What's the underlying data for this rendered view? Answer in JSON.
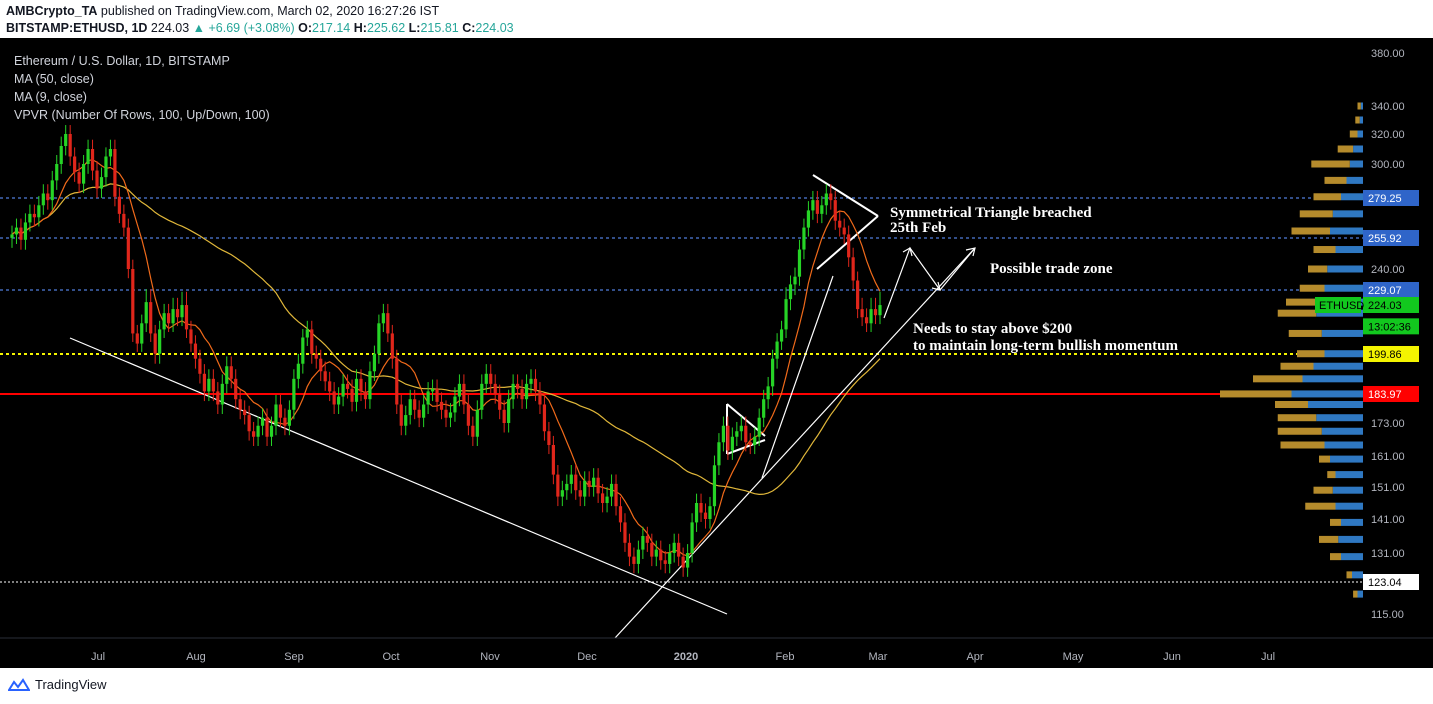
{
  "header": {
    "publisher": "AMBCrypto_TA",
    "published_text": "published on TradingView.com, March 02, 2020 16:27:26 IST",
    "symbol": "BITSTAMP:ETHUSD, 1D",
    "last": "224.03",
    "change": "▲ +6.69 (+3.08%)",
    "open_label": "O:",
    "open": "217.14",
    "high_label": "H:",
    "high": "225.62",
    "low_label": "L:",
    "low": "215.81",
    "close_label": "C:",
    "close": "224.03"
  },
  "legend": {
    "title": "Ethereum / U.S. Dollar, 1D, BITSTAMP",
    "ma50": "MA (50, close)",
    "ma9": "MA (9, close)",
    "vpvr": "VPVR (Number Of Rows, 100, Up/Down, 100)"
  },
  "footer": {
    "brand": "TradingView"
  },
  "colors": {
    "up": "#26d426",
    "down": "#e0261b",
    "ma50": "#e0b73a",
    "ma9": "#f06a1a",
    "dotted_blue": "#4f7ddb",
    "yellow": "#f4f400",
    "red_line": "#ff0000",
    "vp_up": "#2f78c2",
    "vp_down": "#b58b2c"
  },
  "chart_data": {
    "type": "candlestick",
    "y_axis": {
      "ticks": [
        380,
        340,
        320,
        300,
        240,
        173,
        161,
        151,
        141,
        131,
        115
      ]
    },
    "x_axis": {
      "labels": [
        "Jul",
        "Aug",
        "Sep",
        "Oct",
        "Nov",
        "Dec",
        "2020",
        "Feb",
        "Mar",
        "Apr",
        "May",
        "Jun",
        "Jul"
      ]
    },
    "price_tags": [
      {
        "label": "279.25",
        "value": 279.25,
        "style": "blue"
      },
      {
        "label": "255.92",
        "value": 255.92,
        "style": "blue"
      },
      {
        "label": "229.07",
        "value": 229.07,
        "style": "blue"
      },
      {
        "label": "224.03",
        "value": 224.03,
        "style": "green",
        "symbol": "ETHUSD"
      },
      {
        "label": "13:02:36",
        "value": 213.5,
        "style": "green"
      },
      {
        "label": "199.86",
        "value": 199.86,
        "style": "yellow"
      },
      {
        "label": "183.97",
        "value": 183.97,
        "style": "red"
      },
      {
        "label": "123.04",
        "value": 123.04,
        "style": "white"
      }
    ],
    "horizontal_levels": [
      {
        "value": 279.25,
        "style": "blue-dotted"
      },
      {
        "value": 255.92,
        "style": "blue-dotted"
      },
      {
        "value": 229.07,
        "style": "blue-dotted"
      },
      {
        "value": 199.86,
        "style": "yellow-dotted"
      },
      {
        "value": 183.97,
        "style": "red-solid"
      },
      {
        "value": 123.04,
        "style": "white-dotted"
      }
    ],
    "annotations": [
      "Symmetrical Triangle breached",
      "25th Feb",
      "Possible trade zone",
      "Needs to stay above $200",
      "to maintain long-term bullish momentum"
    ],
    "closes": [
      258,
      262,
      255,
      265,
      270,
      268,
      275,
      282,
      278,
      290,
      300,
      312,
      320,
      305,
      295,
      288,
      300,
      310,
      296,
      285,
      292,
      305,
      310,
      280,
      270,
      262,
      240,
      210,
      205,
      215,
      225,
      210,
      200,
      212,
      220,
      215,
      222,
      218,
      224,
      212,
      205,
      198,
      192,
      185,
      190,
      185,
      180,
      188,
      195,
      190,
      182,
      178,
      176,
      170,
      168,
      172,
      175,
      168,
      172,
      180,
      175,
      172,
      178,
      190,
      196,
      208,
      212,
      200,
      198,
      193,
      189,
      185,
      180,
      183,
      188,
      186,
      181,
      190,
      185,
      182,
      193,
      200,
      215,
      220,
      210,
      198,
      180,
      172,
      176,
      182,
      178,
      175,
      180,
      185,
      186,
      181,
      178,
      175,
      177,
      183,
      188,
      180,
      172,
      168,
      178,
      188,
      192,
      188,
      184,
      178,
      173,
      182,
      188,
      186,
      182,
      188,
      190,
      185,
      180,
      170,
      165,
      155,
      148,
      150,
      152,
      155,
      150,
      148,
      153,
      151,
      154,
      149,
      146,
      148,
      152,
      145,
      140,
      134,
      130,
      128,
      132,
      136,
      134,
      130,
      132,
      129,
      128,
      131,
      134,
      130,
      127,
      131,
      140,
      146,
      143,
      141,
      145,
      158,
      166,
      172,
      163,
      168,
      170,
      172,
      166,
      165,
      168,
      175,
      182,
      187,
      198,
      206,
      212,
      226,
      232,
      236,
      250,
      262,
      272,
      278,
      270,
      275,
      282,
      278,
      266,
      262,
      258,
      246,
      234,
      222,
      218,
      215,
      222,
      219,
      224
    ],
    "vpvr": [
      {
        "price": 340,
        "up": 4,
        "down": 6
      },
      {
        "price": 330,
        "up": 6,
        "down": 8
      },
      {
        "price": 320,
        "up": 10,
        "down": 14
      },
      {
        "price": 310,
        "up": 18,
        "down": 28
      },
      {
        "price": 300,
        "up": 24,
        "down": 70
      },
      {
        "price": 290,
        "up": 30,
        "down": 40
      },
      {
        "price": 280,
        "up": 40,
        "down": 50
      },
      {
        "price": 270,
        "up": 55,
        "down": 60
      },
      {
        "price": 260,
        "up": 60,
        "down": 70
      },
      {
        "price": 250,
        "up": 50,
        "down": 40
      },
      {
        "price": 240,
        "up": 65,
        "down": 35
      },
      {
        "price": 230,
        "up": 70,
        "down": 45
      },
      {
        "price": 225,
        "up": 80,
        "down": 60
      },
      {
        "price": 220,
        "up": 85,
        "down": 70
      },
      {
        "price": 210,
        "up": 75,
        "down": 60
      },
      {
        "price": 200,
        "up": 70,
        "down": 50
      },
      {
        "price": 195,
        "up": 90,
        "down": 60
      },
      {
        "price": 190,
        "up": 110,
        "down": 90
      },
      {
        "price": 184,
        "up": 130,
        "down": 130
      },
      {
        "price": 180,
        "up": 100,
        "down": 60
      },
      {
        "price": 175,
        "up": 85,
        "down": 70
      },
      {
        "price": 170,
        "up": 75,
        "down": 80
      },
      {
        "price": 165,
        "up": 70,
        "down": 80
      },
      {
        "price": 160,
        "up": 60,
        "down": 20
      },
      {
        "price": 155,
        "up": 50,
        "down": 15
      },
      {
        "price": 150,
        "up": 55,
        "down": 35
      },
      {
        "price": 145,
        "up": 50,
        "down": 55
      },
      {
        "price": 140,
        "up": 40,
        "down": 20
      },
      {
        "price": 135,
        "up": 45,
        "down": 35
      },
      {
        "price": 130,
        "up": 40,
        "down": 20
      },
      {
        "price": 125,
        "up": 20,
        "down": 10
      },
      {
        "price": 120,
        "up": 10,
        "down": 8
      }
    ]
  }
}
